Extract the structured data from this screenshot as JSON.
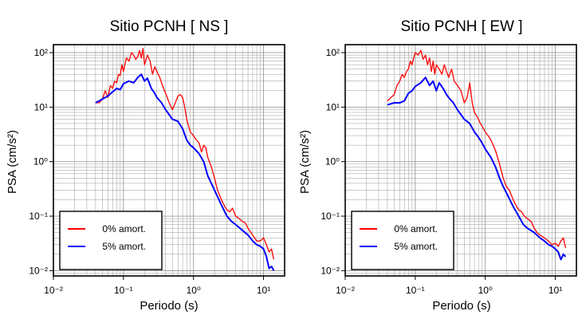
{
  "chart_data": [
    {
      "type": "line",
      "title": "Sitio PCNH [ NS ]",
      "xlabel": "Periodo (s)",
      "ylabel": "PSA (cm/s²)",
      "xscale": "log",
      "yscale": "log",
      "xlim": [
        0.01,
        20
      ],
      "ylim": [
        0.008,
        140
      ],
      "xticks": [
        {
          "value": 0.01,
          "label": "10⁻²"
        },
        {
          "value": 0.1,
          "label": "10⁻¹"
        },
        {
          "value": 1,
          "label": "10⁰"
        },
        {
          "value": 10,
          "label": "10¹"
        }
      ],
      "yticks": [
        {
          "value": 0.01,
          "label": "10⁻²"
        },
        {
          "value": 0.1,
          "label": "10⁻¹"
        },
        {
          "value": 1,
          "label": "10⁰"
        },
        {
          "value": 10,
          "label": "10¹"
        },
        {
          "value": 100,
          "label": "10²"
        }
      ],
      "grid": true,
      "legend": "bottom-left",
      "series": [
        {
          "name": "0% amort.",
          "color": "#ff0000",
          "x": [
            0.04,
            0.045,
            0.05,
            0.055,
            0.06,
            0.065,
            0.07,
            0.075,
            0.08,
            0.085,
            0.09,
            0.095,
            0.1,
            0.11,
            0.12,
            0.13,
            0.14,
            0.15,
            0.16,
            0.17,
            0.18,
            0.19,
            0.2,
            0.22,
            0.24,
            0.26,
            0.28,
            0.3,
            0.33,
            0.36,
            0.4,
            0.45,
            0.5,
            0.55,
            0.6,
            0.65,
            0.7,
            0.75,
            0.8,
            0.85,
            0.9,
            1.0,
            1.1,
            1.2,
            1.3,
            1.4,
            1.5,
            1.6,
            1.8,
            2.0,
            2.2,
            2.5,
            2.8,
            3.0,
            3.3,
            3.6,
            4.0,
            4.5,
            5.0,
            5.5,
            6.0,
            7.0,
            8.0,
            9.0,
            10.0,
            11.0,
            12.0,
            13.0,
            14.0
          ],
          "y": [
            12,
            12,
            14,
            20,
            15,
            25,
            22,
            30,
            28,
            40,
            38,
            60,
            45,
            80,
            70,
            100,
            90,
            75,
            85,
            110,
            80,
            120,
            60,
            90,
            70,
            40,
            55,
            45,
            35,
            25,
            18,
            12,
            9,
            12,
            16,
            17,
            15,
            10,
            6,
            4.5,
            3.5,
            3.0,
            2.5,
            2.2,
            1.5,
            2.0,
            1.8,
            1.2,
            0.8,
            0.5,
            0.3,
            0.2,
            0.15,
            0.13,
            0.12,
            0.14,
            0.1,
            0.09,
            0.08,
            0.075,
            0.06,
            0.045,
            0.035,
            0.035,
            0.04,
            0.03,
            0.022,
            0.025,
            0.016
          ]
        },
        {
          "name": "5% amort.",
          "color": "#0000ff",
          "x": [
            0.04,
            0.05,
            0.06,
            0.07,
            0.08,
            0.09,
            0.1,
            0.12,
            0.14,
            0.16,
            0.18,
            0.2,
            0.22,
            0.25,
            0.28,
            0.3,
            0.35,
            0.4,
            0.5,
            0.6,
            0.7,
            0.8,
            0.9,
            1.0,
            1.2,
            1.4,
            1.6,
            1.8,
            2.0,
            2.5,
            3.0,
            3.5,
            4.0,
            5.0,
            6.0,
            7.0,
            8.0,
            9.0,
            10.0,
            11.0,
            12.0,
            13.0,
            14.0
          ],
          "y": [
            12,
            14,
            16,
            19,
            22,
            21,
            27,
            30,
            28,
            35,
            40,
            30,
            34,
            22,
            18,
            15,
            12,
            9,
            6,
            5.5,
            4,
            2.5,
            2.0,
            1.8,
            1.4,
            1.0,
            0.55,
            0.4,
            0.3,
            0.16,
            0.1,
            0.08,
            0.07,
            0.055,
            0.045,
            0.035,
            0.03,
            0.028,
            0.025,
            0.018,
            0.011,
            0.012,
            0.01
          ]
        }
      ]
    },
    {
      "type": "line",
      "title": "Sitio PCNH [ EW ]",
      "xlabel": "Periodo (s)",
      "ylabel": "PSA (cm/s²)",
      "xscale": "log",
      "yscale": "log",
      "xlim": [
        0.01,
        20
      ],
      "ylim": [
        0.008,
        140
      ],
      "xticks": [
        {
          "value": 0.01,
          "label": "10⁻²"
        },
        {
          "value": 0.1,
          "label": "10⁻¹"
        },
        {
          "value": 1,
          "label": "10⁰"
        },
        {
          "value": 10,
          "label": "10¹"
        }
      ],
      "yticks": [
        {
          "value": 0.01,
          "label": "10⁻²"
        },
        {
          "value": 0.1,
          "label": "10⁻¹"
        },
        {
          "value": 1,
          "label": "10⁰"
        },
        {
          "value": 10,
          "label": "10¹"
        },
        {
          "value": 100,
          "label": "10²"
        }
      ],
      "grid": true,
      "legend": "bottom-left",
      "series": [
        {
          "name": "0% amort.",
          "color": "#ff0000",
          "x": [
            0.04,
            0.045,
            0.05,
            0.055,
            0.06,
            0.065,
            0.07,
            0.075,
            0.08,
            0.085,
            0.09,
            0.095,
            0.1,
            0.11,
            0.12,
            0.13,
            0.14,
            0.15,
            0.16,
            0.17,
            0.18,
            0.19,
            0.2,
            0.22,
            0.24,
            0.26,
            0.28,
            0.3,
            0.33,
            0.36,
            0.4,
            0.45,
            0.5,
            0.55,
            0.6,
            0.65,
            0.7,
            0.75,
            0.8,
            0.85,
            0.9,
            1.0,
            1.1,
            1.2,
            1.3,
            1.4,
            1.6,
            1.8,
            2.0,
            2.2,
            2.5,
            2.8,
            3.0,
            3.3,
            3.6,
            4.0,
            4.5,
            5.0,
            5.5,
            6.0,
            7.0,
            8.0,
            9.0,
            10.0,
            11.0,
            12.0,
            13.0,
            14.0
          ],
          "y": [
            13,
            15,
            17,
            25,
            30,
            40,
            35,
            45,
            50,
            70,
            60,
            80,
            100,
            90,
            110,
            75,
            90,
            60,
            80,
            45,
            70,
            40,
            60,
            50,
            40,
            60,
            45,
            35,
            50,
            30,
            25,
            20,
            12,
            15,
            28,
            12,
            8,
            7,
            6,
            5,
            4.5,
            3.5,
            3.0,
            2.5,
            2.0,
            1.6,
            0.9,
            0.5,
            0.35,
            0.3,
            0.2,
            0.15,
            0.13,
            0.12,
            0.1,
            0.09,
            0.08,
            0.06,
            0.05,
            0.045,
            0.04,
            0.035,
            0.03,
            0.032,
            0.028,
            0.035,
            0.04,
            0.026
          ]
        },
        {
          "name": "5% amort.",
          "color": "#0000ff",
          "x": [
            0.04,
            0.05,
            0.06,
            0.07,
            0.08,
            0.09,
            0.1,
            0.12,
            0.14,
            0.16,
            0.18,
            0.2,
            0.22,
            0.25,
            0.28,
            0.3,
            0.35,
            0.4,
            0.5,
            0.6,
            0.7,
            0.8,
            0.9,
            1.0,
            1.2,
            1.4,
            1.6,
            1.8,
            2.0,
            2.5,
            3.0,
            3.5,
            4.0,
            5.0,
            6.0,
            7.0,
            8.0,
            9.0,
            10.0,
            11.0,
            12.0,
            13.0,
            14.0
          ],
          "y": [
            11,
            12,
            12,
            13,
            18,
            20,
            24,
            28,
            35,
            25,
            30,
            20,
            28,
            22,
            17,
            15,
            12,
            9,
            6,
            5,
            3.5,
            2.8,
            2.2,
            1.7,
            1.2,
            0.8,
            0.5,
            0.35,
            0.27,
            0.15,
            0.1,
            0.07,
            0.06,
            0.05,
            0.04,
            0.035,
            0.03,
            0.028,
            0.025,
            0.022,
            0.016,
            0.02,
            0.018
          ]
        }
      ]
    }
  ]
}
